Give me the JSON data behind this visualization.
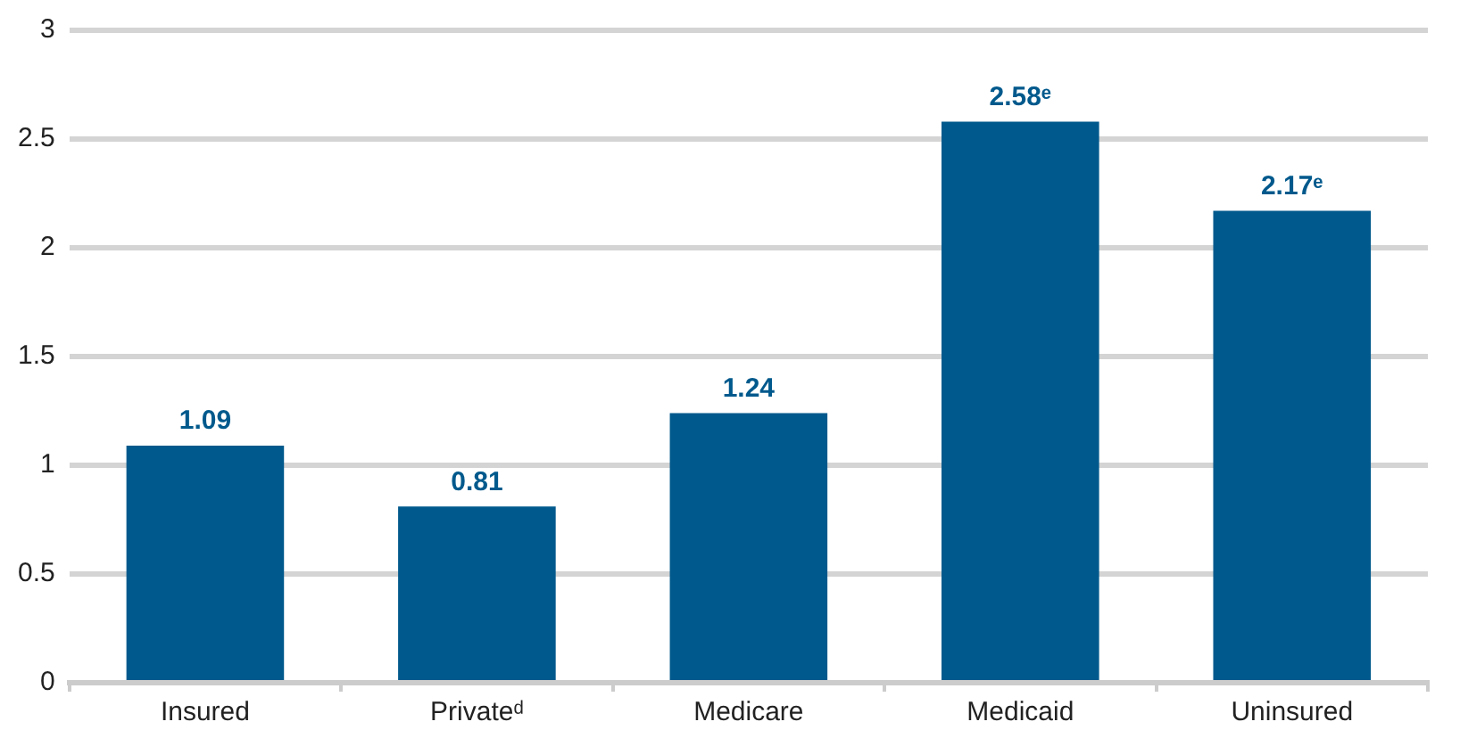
{
  "chart_data": {
    "type": "bar",
    "categories": [
      "Insured",
      "Privateᵈ",
      "Medicare",
      "Medicaid",
      "Uninsured"
    ],
    "values": [
      1.09,
      0.81,
      1.24,
      2.58,
      2.17
    ],
    "value_labels": [
      "1.09",
      "0.81",
      "1.24",
      "2.58ᵉ",
      "2.17ᵉ"
    ],
    "color": "#00598c",
    "ylim": [
      0,
      3
    ],
    "yticks": [
      0,
      0.5,
      1,
      1.5,
      2,
      2.5,
      3
    ],
    "grid": "y",
    "legend": false
  }
}
